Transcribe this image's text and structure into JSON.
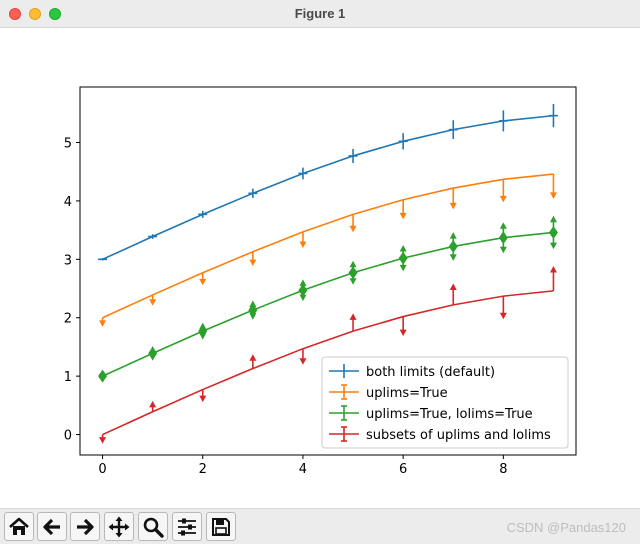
{
  "window": {
    "title": "Figure 1"
  },
  "watermark": "CSDN @Pandas120",
  "toolbar": {
    "buttons": [
      "home-icon",
      "back-arrow-icon",
      "forward-arrow-icon",
      "pan-icon",
      "zoom-icon",
      "configure-subplots-icon",
      "save-icon"
    ]
  },
  "chart_data": {
    "type": "line",
    "title": "",
    "xlabel": "",
    "ylabel": "",
    "xlim": [
      -0.45,
      9.45
    ],
    "ylim": [
      -0.35,
      5.95
    ],
    "xticks": [
      0,
      2,
      4,
      6,
      8
    ],
    "yticks": [
      0,
      1,
      2,
      3,
      4,
      5
    ],
    "grid": false,
    "legend_position": "lower-right",
    "x": [
      0,
      1,
      2,
      3,
      4,
      5,
      6,
      7,
      8,
      9
    ],
    "series": [
      {
        "name": "both limits (default)",
        "color": "#1f77b4",
        "marker": "none",
        "values": [
          3.0,
          3.39,
          3.77,
          4.13,
          4.47,
          4.77,
          5.02,
          5.22,
          5.37,
          5.46
        ],
        "yerr": [
          0.02,
          0.04,
          0.06,
          0.08,
          0.1,
          0.12,
          0.14,
          0.16,
          0.18,
          0.2
        ],
        "limits": [
          "both",
          "both",
          "both",
          "both",
          "both",
          "both",
          "both",
          "both",
          "both",
          "both"
        ]
      },
      {
        "name": "uplims=True",
        "color": "#ff7f0e",
        "marker": "none",
        "values": [
          2.0,
          2.39,
          2.77,
          3.13,
          3.47,
          3.77,
          4.02,
          4.22,
          4.37,
          4.46
        ],
        "yerr": [
          0.07,
          0.1,
          0.13,
          0.16,
          0.19,
          0.22,
          0.25,
          0.28,
          0.31,
          0.34
        ],
        "limits": [
          "upper",
          "upper",
          "upper",
          "upper",
          "upper",
          "upper",
          "upper",
          "upper",
          "upper",
          "upper"
        ]
      },
      {
        "name": "uplims=True, lolims=True",
        "color": "#2ca02c",
        "marker": "diamond",
        "values": [
          1.0,
          1.39,
          1.77,
          2.13,
          2.47,
          2.77,
          3.02,
          3.22,
          3.37,
          3.46
        ],
        "yerr": [
          0.02,
          0.04,
          0.06,
          0.08,
          0.1,
          0.12,
          0.14,
          0.16,
          0.18,
          0.2
        ],
        "limits": [
          "both-arrows",
          "both-arrows",
          "both-arrows",
          "both-arrows",
          "both-arrows",
          "both-arrows",
          "both-arrows",
          "both-arrows",
          "both-arrows",
          "both-arrows"
        ]
      },
      {
        "name": "subsets of uplims and lolims",
        "color": "#d62728",
        "marker": "none",
        "values": [
          0.0,
          0.39,
          0.77,
          1.13,
          1.47,
          1.77,
          2.02,
          2.22,
          2.37,
          2.46
        ],
        "yerr": [
          0.07,
          0.1,
          0.13,
          0.16,
          0.19,
          0.22,
          0.25,
          0.28,
          0.31,
          0.34
        ],
        "limits": [
          "upper",
          "lower",
          "upper",
          "lower",
          "upper",
          "lower",
          "upper",
          "lower",
          "upper",
          "lower"
        ]
      }
    ]
  }
}
